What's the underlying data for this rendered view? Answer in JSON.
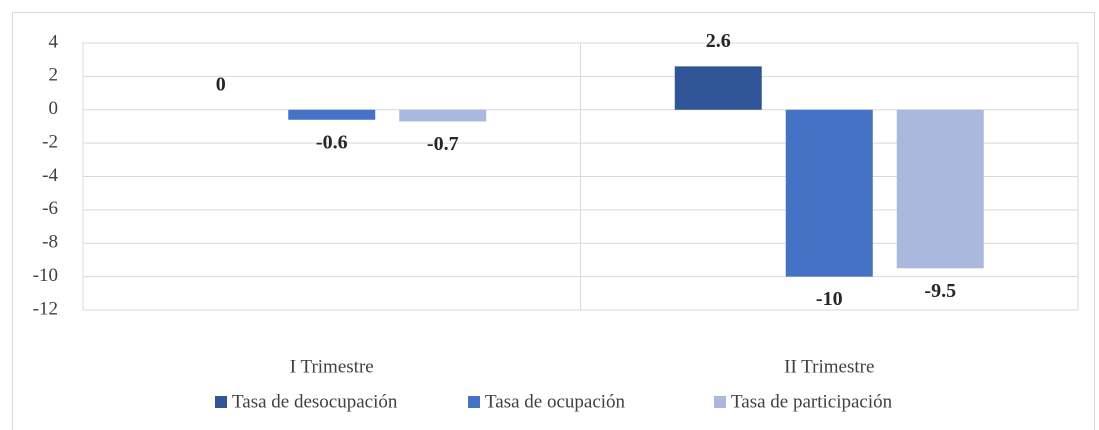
{
  "chart_data": {
    "type": "bar",
    "categories": [
      "I Trimestre",
      "II Trimestre"
    ],
    "series": [
      {
        "name": "Tasa de desocupación",
        "color": "#2f5597",
        "values": [
          0,
          2.6
        ]
      },
      {
        "name": "Tasa de ocupación",
        "color": "#4472c4",
        "values": [
          -0.6,
          -10
        ]
      },
      {
        "name": "Tasa de participación",
        "color": "#a9b8dc",
        "values": [
          -0.7,
          -9.5
        ]
      }
    ],
    "ylim": [
      -12,
      4
    ],
    "yticks": [
      -12,
      -10,
      -8,
      -6,
      -4,
      -2,
      0,
      2,
      4
    ],
    "grid": true,
    "legend": "bottom"
  }
}
